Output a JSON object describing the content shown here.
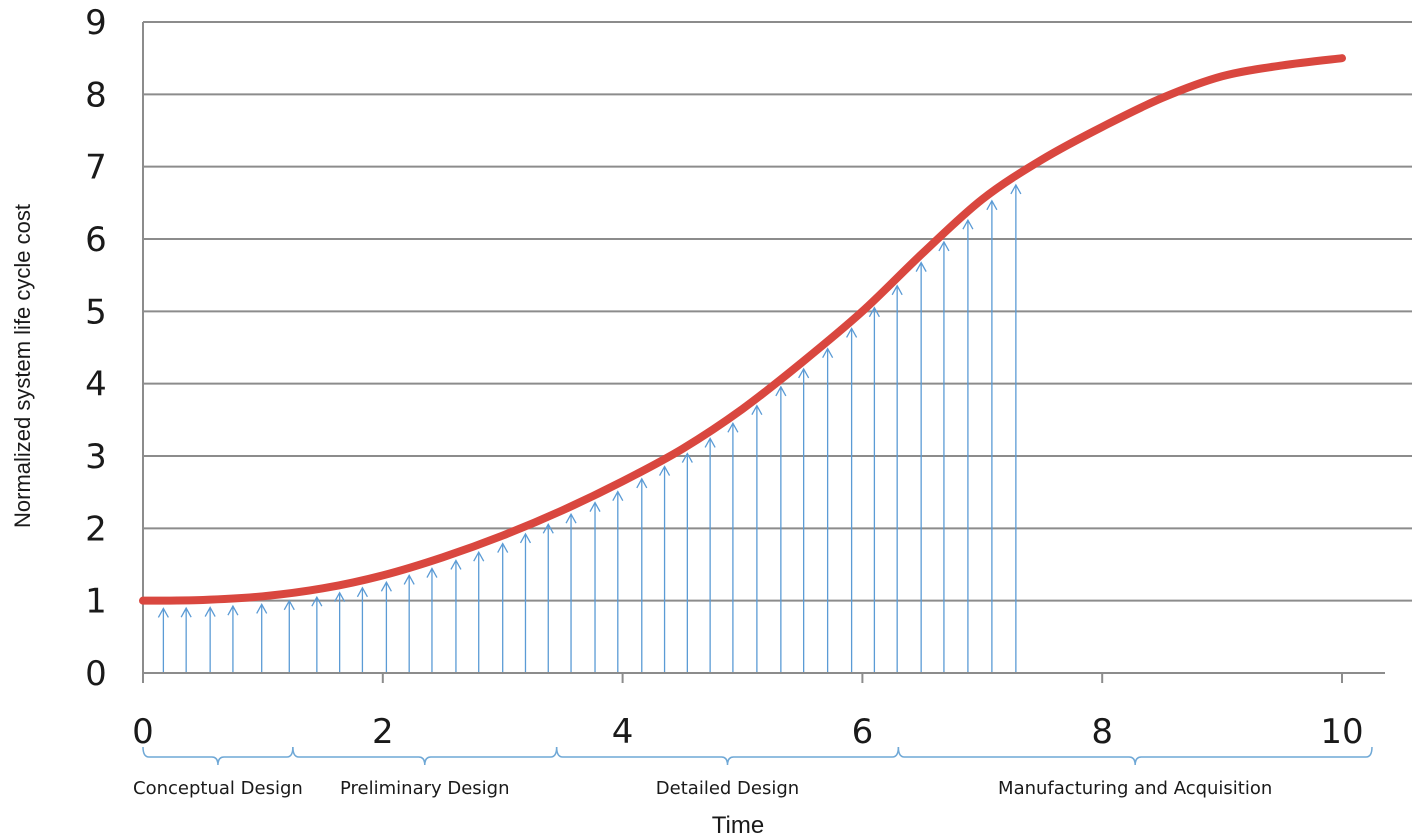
{
  "chart_data": {
    "type": "line",
    "title": "",
    "xlabel": "Time",
    "ylabel": "Normalized system life cycle cost",
    "xlim": [
      0,
      10
    ],
    "ylim": [
      0,
      9
    ],
    "x_ticks": [
      "0",
      "2",
      "4",
      "6",
      "8",
      "10"
    ],
    "y_ticks": [
      "0",
      "1",
      "2",
      "3",
      "4",
      "5",
      "6",
      "7",
      "8",
      "9"
    ],
    "grid": "horizontal",
    "colors": {
      "curve": "#d9473f",
      "arrows": "#5b9bd5",
      "grid": "#8c8c8c",
      "brackets": "#6fa8d6"
    },
    "series": [
      {
        "x": [
          0,
          0.5,
          1,
          1.5,
          2,
          2.5,
          3,
          3.5,
          4,
          4.5,
          5,
          5.5,
          6,
          6.5,
          7,
          7.5,
          8,
          8.5,
          9,
          9.5,
          10
        ],
        "y": [
          1.0,
          1.01,
          1.06,
          1.17,
          1.35,
          1.6,
          1.9,
          2.25,
          2.65,
          3.1,
          3.65,
          4.3,
          5.0,
          5.8,
          6.55,
          7.1,
          7.55,
          7.95,
          8.25,
          8.4,
          8.5
        ]
      }
    ],
    "arrows_x": [
      0.17,
      0.36,
      0.56,
      0.75,
      0.99,
      1.22,
      1.45,
      1.64,
      1.83,
      2.03,
      2.22,
      2.41,
      2.61,
      2.8,
      3.0,
      3.19,
      3.38,
      3.57,
      3.77,
      3.96,
      4.16,
      4.35,
      4.54,
      4.73,
      4.92,
      5.12,
      5.32,
      5.51,
      5.71,
      5.91,
      6.1,
      6.29,
      6.49,
      6.68,
      6.88,
      7.08,
      7.28
    ],
    "phases": [
      {
        "label": "Conceptual Design",
        "start": 0,
        "end": 1.25
      },
      {
        "label": "Preliminary Design",
        "start": 1.25,
        "end": 3.45
      },
      {
        "label": "Detailed Design",
        "start": 3.45,
        "end": 6.3
      },
      {
        "label": "Manufacturing and Acquisition",
        "start": 6.3,
        "end": 10.25
      }
    ]
  }
}
